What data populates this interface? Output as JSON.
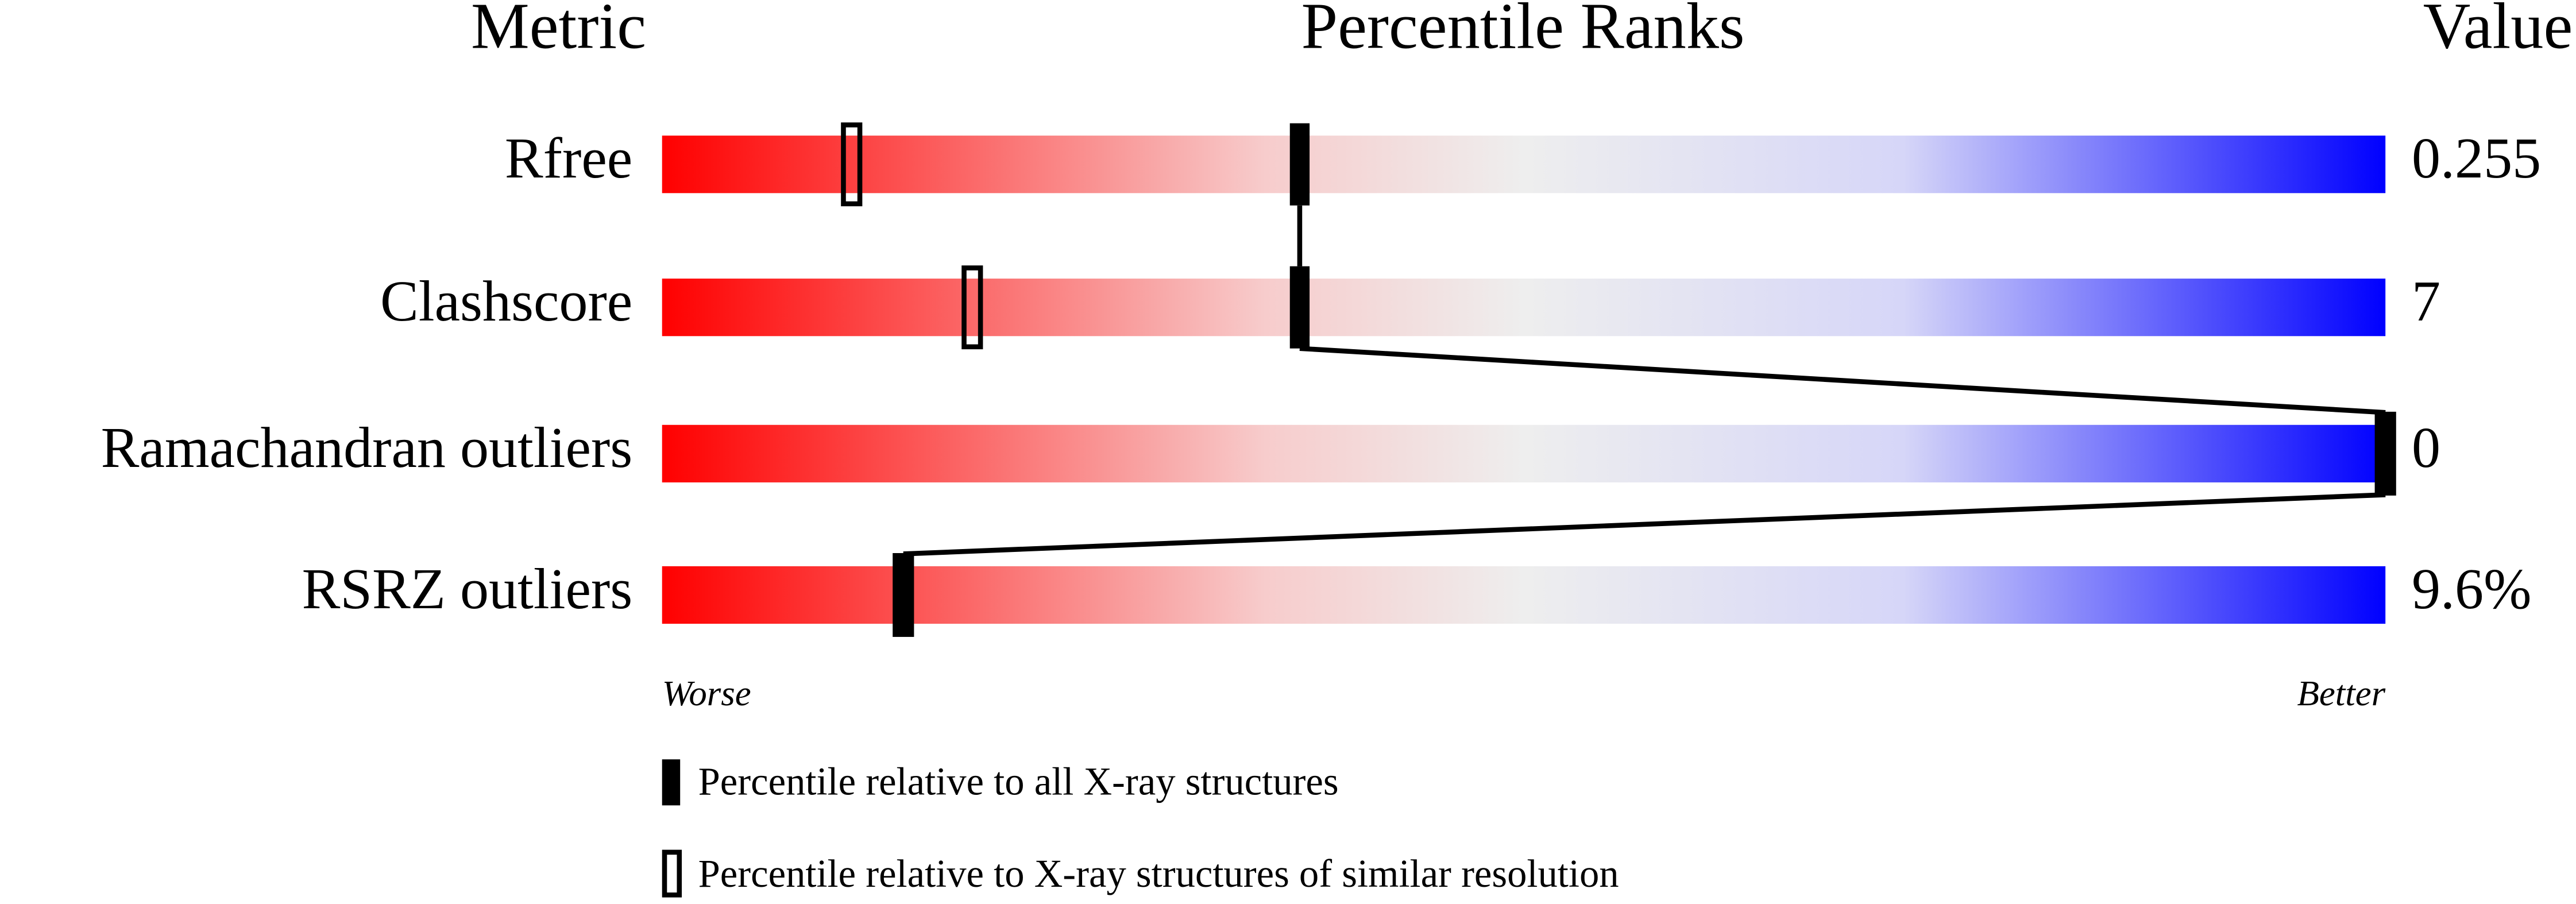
{
  "chart_data": {
    "type": "percentile-slider",
    "headers": [
      "Metric",
      "Percentile Ranks",
      "Value"
    ],
    "categories": [
      "Rfree",
      "Clashscore",
      "Ramachandran outliers",
      "RSRZ outliers"
    ],
    "value_column": [
      "0.255",
      "7",
      "0",
      "9.6%"
    ],
    "series": [
      {
        "name": "Percentile relative to all X-ray structures",
        "color": "#000000",
        "values": [
          37,
          37,
          100,
          14
        ]
      },
      {
        "name": "Percentile relative to X-ray structures of similar resolution",
        "color": "#000000",
        "values": [
          11,
          18,
          100,
          14
        ]
      }
    ],
    "xlim": [
      0,
      100
    ],
    "axis_labels": [
      "Worse",
      "Better"
    ]
  }
}
